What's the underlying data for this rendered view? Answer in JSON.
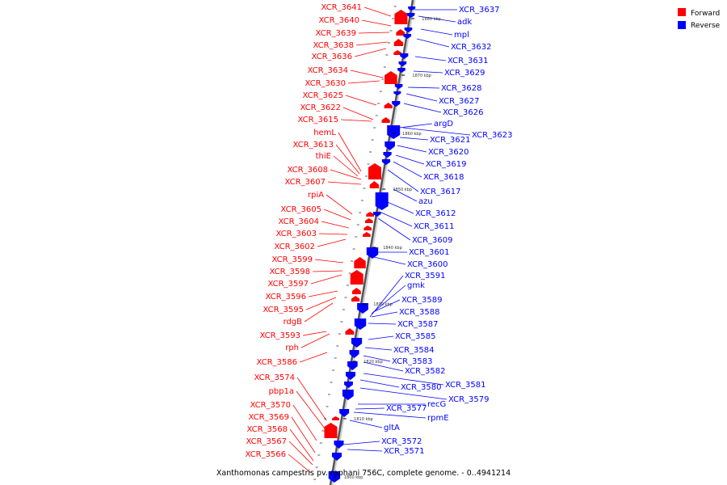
{
  "caption": "Xanthomonas campestris pv. raphani 756C, complete genome. - 0..4941214",
  "legend": [
    {
      "label": "Forward",
      "color": "#ff0000"
    },
    {
      "label": "Reverse",
      "color": "#0000ff"
    }
  ],
  "ticks": [
    "1880 kbp",
    "1870 kbp",
    "1860 kbp",
    "1850 kbp",
    "1840 kbp",
    "1830 kbp",
    "1820 kbp",
    "1810 kbp",
    "1800 kbp"
  ],
  "forward": [
    "XCR_3641",
    "XCR_3640",
    "XCR_3639",
    "XCR_3638",
    "XCR_3636",
    "XCR_3634",
    "XCR_3630",
    "XCR_3625",
    "XCR_3622",
    "XCR_3615",
    "hemL",
    "XCR_3613",
    "thiE",
    "XCR_3608",
    "XCR_3607",
    "rpiA",
    "XCR_3605",
    "XCR_3604",
    "XCR_3603",
    "XCR_3602",
    "XCR_3599",
    "XCR_3598",
    "XCR_3597",
    "XCR_3596",
    "XCR_3595",
    "rdgB",
    "XCR_3593",
    "rph",
    "XCR_3586",
    "XCR_3574",
    "pbp1a",
    "XCR_3570",
    "XCR_3569",
    "XCR_3568",
    "XCR_3567",
    "XCR_3566"
  ],
  "reverse": [
    "XCR_3637",
    "adk",
    "mpl",
    "XCR_3632",
    "XCR_3631",
    "XCR_3629",
    "XCR_3628",
    "XCR_3627",
    "XCR_3626",
    "argD",
    "XCR_3623",
    "XCR_3621",
    "XCR_3620",
    "XCR_3619",
    "XCR_3618",
    "XCR_3617",
    "azu",
    "XCR_3612",
    "XCR_3611",
    "XCR_3609",
    "XCR_3601",
    "XCR_3600",
    "XCR_3591",
    "gmk",
    "XCR_3589",
    "XCR_3588",
    "XCR_3587",
    "XCR_3585",
    "XCR_3584",
    "XCR_3583",
    "XCR_3582",
    "XCR_3581",
    "XCR_3580",
    "XCR_3579",
    "recG",
    "XCR_3577",
    "rpmE",
    "gltA",
    "XCR_3572",
    "XCR_3571"
  ]
}
